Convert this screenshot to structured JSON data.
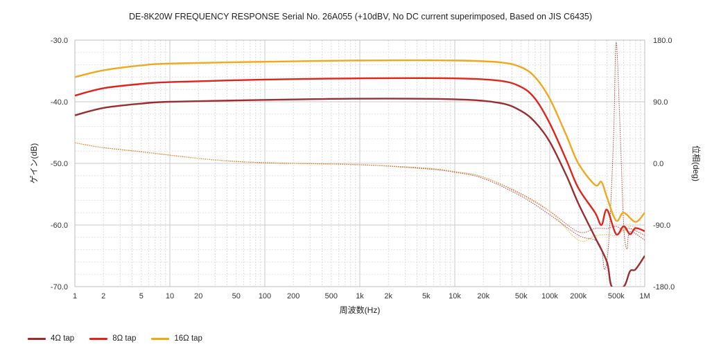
{
  "chart_data": {
    "type": "line",
    "title": "DE-8K20W FREQUENCY RESPONSE Serial No. 26A055 (+10dBV,  No DC current superimposed,  Based on JIS C6435)",
    "xlabel": "周波数(Hz)",
    "ylabel": "ゲイン(dB)",
    "y2label": "位相(deg)",
    "x_scale": "log",
    "xlim": [
      1,
      1000000
    ],
    "ylim": [
      -70,
      -30
    ],
    "y2lim": [
      -180,
      180
    ],
    "grid": true,
    "legend_position": "bottom-left",
    "x_ticks": [
      {
        "v": 1,
        "label": "1"
      },
      {
        "v": 2,
        "label": "2"
      },
      {
        "v": 5,
        "label": "5"
      },
      {
        "v": 10,
        "label": "10"
      },
      {
        "v": 20,
        "label": "20"
      },
      {
        "v": 50,
        "label": "50"
      },
      {
        "v": 100,
        "label": "100"
      },
      {
        "v": 200,
        "label": "200"
      },
      {
        "v": 500,
        "label": "500"
      },
      {
        "v": 1000,
        "label": "1k"
      },
      {
        "v": 2000,
        "label": "2k"
      },
      {
        "v": 5000,
        "label": "5k"
      },
      {
        "v": 10000,
        "label": "10k"
      },
      {
        "v": 20000,
        "label": "20k"
      },
      {
        "v": 50000,
        "label": "50k"
      },
      {
        "v": 100000,
        "label": "100k"
      },
      {
        "v": 200000,
        "label": "200k"
      },
      {
        "v": 500000,
        "label": "500k"
      },
      {
        "v": 1000000,
        "label": "1M"
      }
    ],
    "y_ticks": [
      "-30.0",
      "-40.0",
      "-50.0",
      "-60.0",
      "-70.0"
    ],
    "y2_ticks": [
      "180.0",
      "90.0",
      "0.0",
      "-90.0",
      "-180.0"
    ],
    "series": [
      {
        "name": "4Ω tap",
        "color": "#9b2d30",
        "gain": [
          [
            1,
            -42.2
          ],
          [
            2,
            -41.0
          ],
          [
            5,
            -40.3
          ],
          [
            10,
            -40.0
          ],
          [
            100,
            -39.7
          ],
          [
            1000,
            -39.5
          ],
          [
            10000,
            -39.6
          ],
          [
            30000,
            -40.2
          ],
          [
            50000,
            -41.5
          ],
          [
            70000,
            -43.3
          ],
          [
            100000,
            -46.5
          ],
          [
            150000,
            -52.0
          ],
          [
            200000,
            -56.5
          ],
          [
            300000,
            -62.0
          ],
          [
            400000,
            -66.0
          ],
          [
            450000,
            -70.0
          ],
          [
            600000,
            -70.0
          ],
          [
            700000,
            -67.5
          ],
          [
            800000,
            -67.2
          ],
          [
            1000000,
            -65.0
          ]
        ],
        "phase": [
          [
            1,
            30
          ],
          [
            2,
            23
          ],
          [
            5,
            17
          ],
          [
            10,
            12
          ],
          [
            30,
            5
          ],
          [
            100,
            1
          ],
          [
            1000,
            -2
          ],
          [
            5000,
            -8
          ],
          [
            10000,
            -13
          ],
          [
            20000,
            -22
          ],
          [
            50000,
            -48
          ],
          [
            100000,
            -75
          ],
          [
            200000,
            -105
          ],
          [
            300000,
            -112
          ],
          [
            350000,
            -125
          ],
          [
            380000,
            -155
          ],
          [
            420000,
            -110
          ],
          [
            470000,
            40
          ],
          [
            500000,
            177
          ],
          [
            550000,
            50
          ],
          [
            600000,
            -90
          ],
          [
            650000,
            -125
          ],
          [
            700000,
            -100
          ],
          [
            1000000,
            -112
          ]
        ]
      },
      {
        "name": "8Ω tap",
        "color": "#e0231b",
        "gain": [
          [
            1,
            -39.0
          ],
          [
            2,
            -37.8
          ],
          [
            5,
            -37.1
          ],
          [
            10,
            -36.8
          ],
          [
            100,
            -36.4
          ],
          [
            1000,
            -36.2
          ],
          [
            10000,
            -36.2
          ],
          [
            30000,
            -36.6
          ],
          [
            50000,
            -37.6
          ],
          [
            70000,
            -39.5
          ],
          [
            100000,
            -43.5
          ],
          [
            150000,
            -49.5
          ],
          [
            200000,
            -54.0
          ],
          [
            300000,
            -58.0
          ],
          [
            350000,
            -60.0
          ],
          [
            400000,
            -57.5
          ],
          [
            500000,
            -61.5
          ],
          [
            600000,
            -60.2
          ],
          [
            700000,
            -61.5
          ],
          [
            800000,
            -60.5
          ],
          [
            1000000,
            -61.0
          ]
        ],
        "phase": [
          [
            1,
            30
          ],
          [
            2,
            23
          ],
          [
            5,
            17
          ],
          [
            10,
            12
          ],
          [
            30,
            5
          ],
          [
            100,
            1
          ],
          [
            1000,
            -2
          ],
          [
            5000,
            -7
          ],
          [
            10000,
            -12
          ],
          [
            20000,
            -20
          ],
          [
            50000,
            -45
          ],
          [
            100000,
            -70
          ],
          [
            200000,
            -100
          ],
          [
            300000,
            -95
          ],
          [
            400000,
            -95
          ],
          [
            500000,
            -92
          ],
          [
            600000,
            -98
          ],
          [
            700000,
            -95
          ],
          [
            1000000,
            -105
          ]
        ]
      },
      {
        "name": "16Ω tap",
        "color": "#f0a81c",
        "gain": [
          [
            1,
            -36.0
          ],
          [
            2,
            -34.9
          ],
          [
            5,
            -34.1
          ],
          [
            10,
            -33.8
          ],
          [
            100,
            -33.5
          ],
          [
            1000,
            -33.3
          ],
          [
            10000,
            -33.3
          ],
          [
            30000,
            -33.6
          ],
          [
            50000,
            -34.4
          ],
          [
            70000,
            -36.0
          ],
          [
            100000,
            -39.5
          ],
          [
            150000,
            -45.5
          ],
          [
            200000,
            -50.0
          ],
          [
            300000,
            -53.5
          ],
          [
            350000,
            -53.0
          ],
          [
            400000,
            -55.5
          ],
          [
            500000,
            -59.3
          ],
          [
            600000,
            -58.0
          ],
          [
            800000,
            -59.5
          ],
          [
            1000000,
            -58.0
          ]
        ],
        "phase": [
          [
            1,
            30
          ],
          [
            2,
            23
          ],
          [
            5,
            17
          ],
          [
            10,
            12
          ],
          [
            30,
            5
          ],
          [
            100,
            1
          ],
          [
            1000,
            -2
          ],
          [
            5000,
            -7
          ],
          [
            10000,
            -12
          ],
          [
            20000,
            -20
          ],
          [
            50000,
            -44
          ],
          [
            100000,
            -70
          ],
          [
            200000,
            -112
          ],
          [
            300000,
            -106
          ],
          [
            400000,
            -104
          ],
          [
            500000,
            -105
          ],
          [
            700000,
            -92
          ],
          [
            1000000,
            -100
          ]
        ]
      }
    ]
  }
}
